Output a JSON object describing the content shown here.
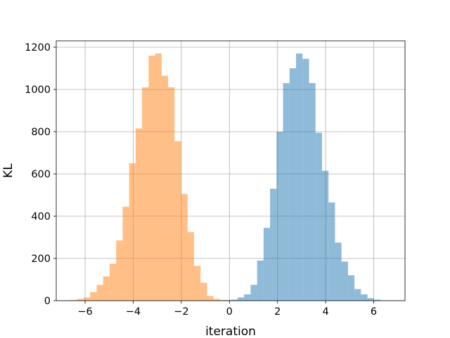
{
  "chart_data": {
    "type": "bar",
    "title": "",
    "xlabel": "iteration",
    "ylabel": "KL",
    "xlim": [
      -7.2,
      7.3
    ],
    "ylim": [
      0,
      1230
    ],
    "grid": true,
    "legend": "none",
    "xticks": [
      -6,
      -4,
      -2,
      0,
      2,
      4,
      6
    ],
    "xtick_labels": [
      "−6",
      "−4",
      "−2",
      "0",
      "2",
      "4",
      "6"
    ],
    "yticks": [
      0,
      200,
      400,
      600,
      800,
      1000,
      1200
    ],
    "ytick_labels": [
      "0",
      "200",
      "400",
      "600",
      "800",
      "1000",
      "1200"
    ],
    "series": [
      {
        "color": "#1f77b4",
        "opacity": 0.5,
        "bin_start": -0.2,
        "bin_width": 0.27,
        "counts": [
          3,
          5,
          15,
          30,
          75,
          190,
          345,
          530,
          800,
          1030,
          1100,
          1170,
          1145,
          1030,
          795,
          615,
          465,
          275,
          185,
          120,
          55,
          30,
          12,
          5
        ]
      },
      {
        "color": "#ff7f0e",
        "opacity": 0.5,
        "bin_start": -6.6,
        "bin_width": 0.27,
        "counts": [
          3,
          8,
          15,
          40,
          75,
          115,
          175,
          285,
          445,
          650,
          815,
          1010,
          1160,
          1170,
          1065,
          1010,
          755,
          505,
          325,
          165,
          85,
          22,
          8,
          3
        ]
      }
    ]
  }
}
